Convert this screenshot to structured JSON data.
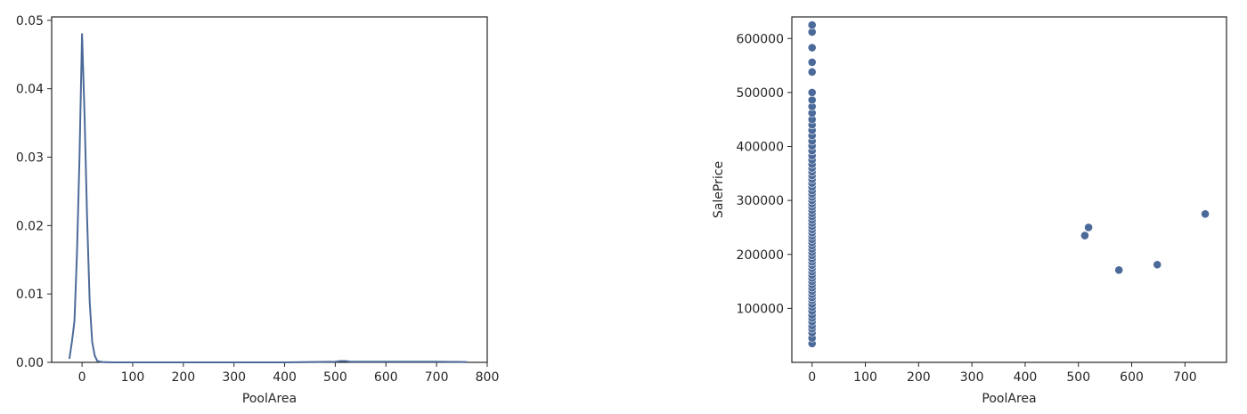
{
  "chart_data": [
    {
      "type": "line",
      "xlabel": "PoolArea",
      "ylabel": "",
      "xlim": [
        -60,
        800
      ],
      "ylim": [
        0,
        0.0505
      ],
      "xticks": [
        0,
        100,
        200,
        300,
        400,
        500,
        600,
        700,
        800
      ],
      "yticks": [
        0.0,
        0.01,
        0.02,
        0.03,
        0.04,
        0.05
      ],
      "ytick_labels": [
        "0.00",
        "0.01",
        "0.02",
        "0.03",
        "0.04",
        "0.05"
      ],
      "grid": false,
      "color": "#4c6a99",
      "series": [
        {
          "x": [
            -25,
            -20,
            -15,
            -10,
            -5,
            0,
            5,
            10,
            15,
            20,
            25,
            30,
            40,
            60,
            100,
            200,
            300,
            400,
            500,
            510,
            520,
            530,
            600,
            700,
            760
          ],
          "y": [
            0.0005,
            0.003,
            0.006,
            0.016,
            0.03,
            0.048,
            0.036,
            0.021,
            0.009,
            0.003,
            0.001,
            0.0002,
            5e-05,
            0.0,
            0.0,
            0.0,
            0.0,
            0.0,
            0.0001,
            0.0002,
            0.0002,
            0.0001,
            0.0001,
            0.0001,
            5e-05
          ]
        }
      ]
    },
    {
      "type": "scatter",
      "xlabel": "PoolArea",
      "ylabel": "SalePrice",
      "xlim": [
        -38,
        778
      ],
      "ylim": [
        0,
        640000
      ],
      "xticks": [
        0,
        100,
        200,
        300,
        400,
        500,
        600,
        700
      ],
      "yticks": [
        100000,
        200000,
        300000,
        400000,
        500000,
        600000
      ],
      "grid": false,
      "color": "#4c6a99",
      "points": [
        [
          0,
          35000
        ],
        [
          0,
          45000
        ],
        [
          0,
          55000
        ],
        [
          0,
          62000
        ],
        [
          0,
          68000
        ],
        [
          0,
          75000
        ],
        [
          0,
          82000
        ],
        [
          0,
          88000
        ],
        [
          0,
          95000
        ],
        [
          0,
          102000
        ],
        [
          0,
          108000
        ],
        [
          0,
          115000
        ],
        [
          0,
          120000
        ],
        [
          0,
          126000
        ],
        [
          0,
          132000
        ],
        [
          0,
          138000
        ],
        [
          0,
          144000
        ],
        [
          0,
          150000
        ],
        [
          0,
          156000
        ],
        [
          0,
          162000
        ],
        [
          0,
          168000
        ],
        [
          0,
          174000
        ],
        [
          0,
          180000
        ],
        [
          0,
          186000
        ],
        [
          0,
          192000
        ],
        [
          0,
          198000
        ],
        [
          0,
          204000
        ],
        [
          0,
          210000
        ],
        [
          0,
          216000
        ],
        [
          0,
          222000
        ],
        [
          0,
          228000
        ],
        [
          0,
          234000
        ],
        [
          0,
          240000
        ],
        [
          0,
          246000
        ],
        [
          0,
          252000
        ],
        [
          0,
          258000
        ],
        [
          0,
          264000
        ],
        [
          0,
          270000
        ],
        [
          0,
          276000
        ],
        [
          0,
          282000
        ],
        [
          0,
          288000
        ],
        [
          0,
          294000
        ],
        [
          0,
          300000
        ],
        [
          0,
          306000
        ],
        [
          0,
          312000
        ],
        [
          0,
          318000
        ],
        [
          0,
          325000
        ],
        [
          0,
          332000
        ],
        [
          0,
          339000
        ],
        [
          0,
          346000
        ],
        [
          0,
          353000
        ],
        [
          0,
          360000
        ],
        [
          0,
          367000
        ],
        [
          0,
          375000
        ],
        [
          0,
          383000
        ],
        [
          0,
          392000
        ],
        [
          0,
          401000
        ],
        [
          0,
          410000
        ],
        [
          0,
          420000
        ],
        [
          0,
          430000
        ],
        [
          0,
          440000
        ],
        [
          0,
          450000
        ],
        [
          0,
          462000
        ],
        [
          0,
          474000
        ],
        [
          0,
          486000
        ],
        [
          0,
          500000
        ],
        [
          0,
          538000
        ],
        [
          0,
          556000
        ],
        [
          0,
          583000
        ],
        [
          0,
          612000
        ],
        [
          0,
          625000
        ],
        [
          512,
          235000
        ],
        [
          519,
          250000
        ],
        [
          576,
          171000
        ],
        [
          648,
          181000
        ],
        [
          738,
          274970
        ]
      ]
    }
  ]
}
